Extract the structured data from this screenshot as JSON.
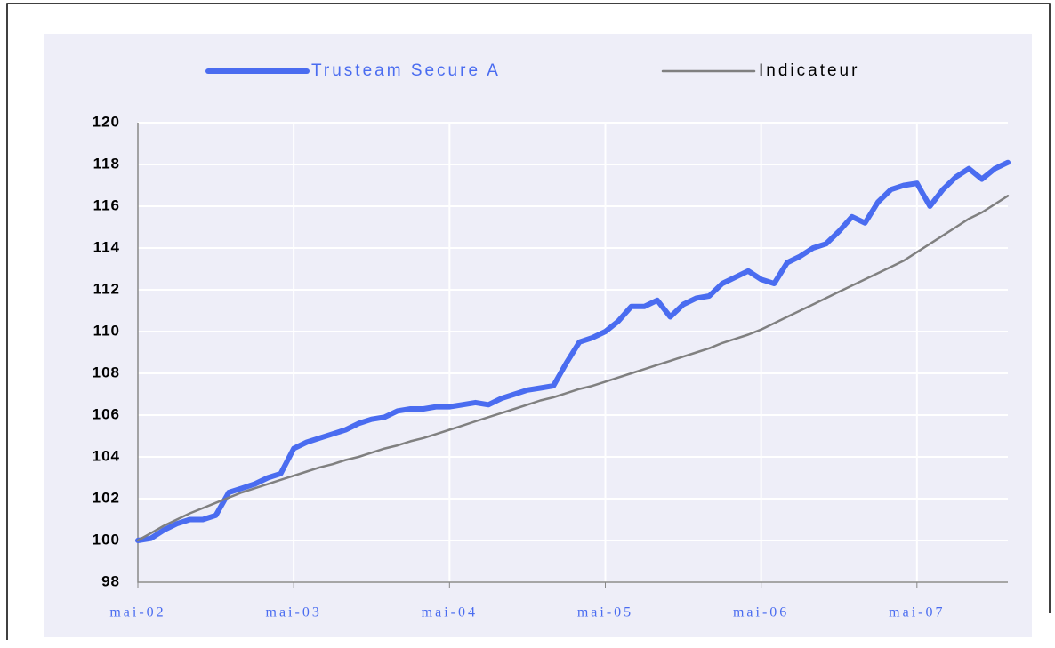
{
  "chart_data": {
    "type": "line",
    "categories": [
      "mai-02",
      null,
      null,
      null,
      null,
      null,
      null,
      null,
      null,
      null,
      null,
      null,
      "mai-03",
      null,
      null,
      null,
      null,
      null,
      null,
      null,
      null,
      null,
      null,
      null,
      "mai-04",
      null,
      null,
      null,
      null,
      null,
      null,
      null,
      null,
      null,
      null,
      null,
      "mai-05",
      null,
      null,
      null,
      null,
      null,
      null,
      null,
      null,
      null,
      null,
      null,
      "mai-06",
      null,
      null,
      null,
      null,
      null,
      null,
      null,
      null,
      null,
      null,
      null,
      "mai-07",
      null,
      null,
      null,
      null,
      null,
      null,
      null
    ],
    "series": [
      {
        "name": "Trusteam Secure A",
        "color": "#4a6cf0",
        "values": [
          100.0,
          100.1,
          100.5,
          100.8,
          101.0,
          101.0,
          101.2,
          102.3,
          102.5,
          102.7,
          103.0,
          103.2,
          104.4,
          104.7,
          104.9,
          105.1,
          105.3,
          105.6,
          105.8,
          105.9,
          106.2,
          106.3,
          106.3,
          106.4,
          106.4,
          106.5,
          106.6,
          106.5,
          106.8,
          107.0,
          107.2,
          107.3,
          107.4,
          108.5,
          109.5,
          109.7,
          110.0,
          110.5,
          111.2,
          111.2,
          111.5,
          110.7,
          111.3,
          111.6,
          111.7,
          112.3,
          112.6,
          112.9,
          112.5,
          112.3,
          113.3,
          113.6,
          114.0,
          114.2,
          114.8,
          115.5,
          115.2,
          116.2,
          116.8,
          117.0,
          117.1,
          116.0,
          116.8,
          117.4,
          117.8,
          117.3,
          117.8,
          118.1
        ]
      },
      {
        "name": "Indicateur",
        "color": "#808080",
        "values": [
          100.0,
          100.35,
          100.7,
          101.0,
          101.3,
          101.55,
          101.8,
          102.05,
          102.3,
          102.5,
          102.7,
          102.9,
          103.1,
          103.3,
          103.5,
          103.65,
          103.85,
          104.0,
          104.2,
          104.4,
          104.55,
          104.75,
          104.9,
          105.1,
          105.3,
          105.5,
          105.7,
          105.9,
          106.1,
          106.3,
          106.5,
          106.7,
          106.85,
          107.05,
          107.25,
          107.4,
          107.6,
          107.8,
          108.0,
          108.2,
          108.4,
          108.6,
          108.8,
          109.0,
          109.2,
          109.45,
          109.65,
          109.85,
          110.1,
          110.4,
          110.7,
          111.0,
          111.3,
          111.6,
          111.9,
          112.2,
          112.5,
          112.8,
          113.1,
          113.4,
          113.8,
          114.2,
          114.6,
          115.0,
          115.4,
          115.7,
          116.1,
          116.5
        ]
      }
    ],
    "ylim": [
      98,
      120
    ],
    "yticks": [
      98,
      100,
      102,
      104,
      106,
      108,
      110,
      112,
      114,
      116,
      118,
      120
    ],
    "grid": true,
    "legend": "top"
  }
}
